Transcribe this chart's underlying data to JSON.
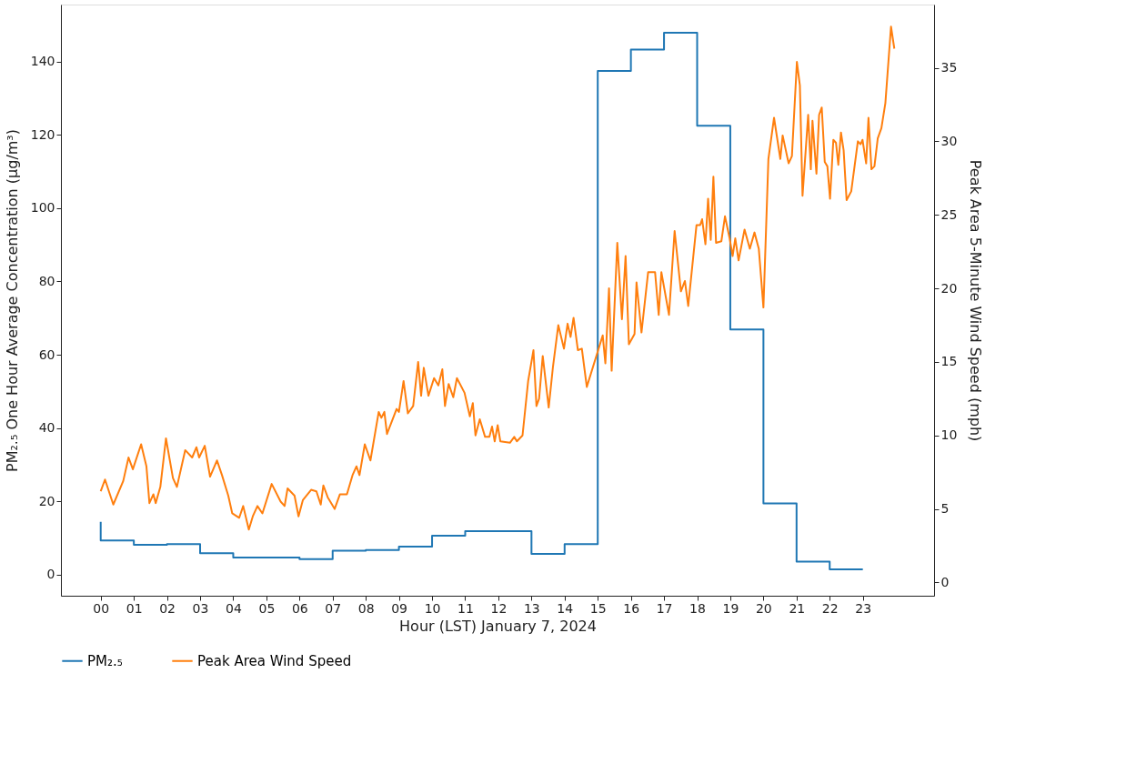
{
  "chart_data": {
    "type": "step",
    "xlabel": "Hour (LST) January 7, 2024",
    "ylabel": "PM₂.₅ One Hour Average Concentration (µg/m³)",
    "y2label": "Peak Area 5-Minute Wind Speed (mph)",
    "xlim": [
      -1.2,
      25.15
    ],
    "xticks": [
      {
        "value": 0,
        "label": "00"
      },
      {
        "value": 1,
        "label": "01"
      },
      {
        "value": 2,
        "label": "02"
      },
      {
        "value": 3,
        "label": "03"
      },
      {
        "value": 4,
        "label": "04"
      },
      {
        "value": 5,
        "label": "05"
      },
      {
        "value": 6,
        "label": "06"
      },
      {
        "value": 7,
        "label": "07"
      },
      {
        "value": 8,
        "label": "08"
      },
      {
        "value": 9,
        "label": "09"
      },
      10,
      11,
      12,
      13,
      14,
      15,
      16,
      17,
      18,
      19,
      20,
      21,
      22,
      23
    ],
    "ylim": [
      -5.8,
      155.6
    ],
    "yticks": [
      0,
      20,
      40,
      60,
      80,
      100,
      120,
      140
    ],
    "y2lim": [
      -0.9,
      39.3
    ],
    "y2ticks": [
      0,
      5,
      10,
      15,
      20,
      25,
      30,
      35
    ],
    "grid": false,
    "legend": "bottom",
    "series": [
      {
        "name": "PM₂.₅",
        "color": "#1f77b4",
        "x": [
          0,
          1,
          2,
          3,
          4,
          5,
          6,
          7,
          8,
          9,
          10,
          11,
          12,
          13,
          14,
          15,
          16,
          17,
          18,
          19,
          20,
          21,
          22,
          23
        ],
        "values": [
          14.4,
          9.3,
          8.1,
          8.3,
          5.8,
          4.6,
          4.6,
          4.2,
          6.5,
          6.7,
          7.6,
          10.6,
          11.8,
          11.8,
          5.6,
          8.3,
          137.5,
          143.3,
          147.9,
          122.5,
          66.9,
          19.4,
          3.5,
          1.4
        ]
      },
      {
        "name": "Peak Area Wind Speed",
        "type": "line",
        "axis": "y2",
        "color": "#ff7f0e",
        "x": [
          0.0,
          0.13,
          0.38,
          0.68,
          0.84,
          0.97,
          1.22,
          1.38,
          1.47,
          1.59,
          1.66,
          1.8,
          1.97,
          2.18,
          2.3,
          2.55,
          2.76,
          2.89,
          2.97,
          3.14,
          3.3,
          3.51,
          3.66,
          3.85,
          3.97,
          4.18,
          4.3,
          4.47,
          4.59,
          4.73,
          4.88,
          5.16,
          5.43,
          5.55,
          5.64,
          5.85,
          5.97,
          6.1,
          6.35,
          6.51,
          6.64,
          6.72,
          6.85,
          7.06,
          7.22,
          7.43,
          7.6,
          7.72,
          7.81,
          7.97,
          8.14,
          8.39,
          8.47,
          8.56,
          8.64,
          8.93,
          9.0,
          9.14,
          9.27,
          9.43,
          9.58,
          9.67,
          9.75,
          9.89,
          10.06,
          10.19,
          10.31,
          10.39,
          10.5,
          10.64,
          10.75,
          10.98,
          11.14,
          11.23,
          11.31,
          11.44,
          11.6,
          11.73,
          11.81,
          11.89,
          11.98,
          12.06,
          12.35,
          12.48,
          12.56,
          12.73,
          12.9,
          13.06,
          13.15,
          13.23,
          13.34,
          13.52,
          13.65,
          13.81,
          13.98,
          14.09,
          14.18,
          14.27,
          14.4,
          14.52,
          14.67,
          15.15,
          15.23,
          15.34,
          15.42,
          15.59,
          15.73,
          15.84,
          15.94,
          16.11,
          16.17,
          16.32,
          16.52,
          16.73,
          16.84,
          16.92,
          17.15,
          17.32,
          17.51,
          17.63,
          17.73,
          17.98,
          18.09,
          18.15,
          18.25,
          18.33,
          18.41,
          18.49,
          18.57,
          18.73,
          18.84,
          18.98,
          19.07,
          19.15,
          19.25,
          19.43,
          19.59,
          19.73,
          19.86,
          20.0,
          20.15,
          20.32,
          20.51,
          20.58,
          20.76,
          20.86,
          21.01,
          21.1,
          21.18,
          21.35,
          21.43,
          21.48,
          21.6,
          21.68,
          21.76,
          21.85,
          21.93,
          22.01,
          22.11,
          22.19,
          22.26,
          22.34,
          22.42,
          22.51,
          22.65,
          22.85,
          22.93,
          22.99,
          23.1,
          23.17,
          23.26,
          23.35,
          23.45,
          23.56,
          23.68,
          23.85,
          23.95
        ],
        "values": [
          6.2,
          7.0,
          5.3,
          6.9,
          8.5,
          7.7,
          9.4,
          7.9,
          5.4,
          6.0,
          5.4,
          6.5,
          9.8,
          7.1,
          6.5,
          9.0,
          8.5,
          9.2,
          8.5,
          9.3,
          7.2,
          8.3,
          7.3,
          5.9,
          4.7,
          4.4,
          5.2,
          3.6,
          4.5,
          5.2,
          4.7,
          6.7,
          5.5,
          5.2,
          6.4,
          5.9,
          4.5,
          5.6,
          6.3,
          6.2,
          5.3,
          6.6,
          5.8,
          5.0,
          6.0,
          6.0,
          7.3,
          7.9,
          7.3,
          9.4,
          8.3,
          11.6,
          11.2,
          11.6,
          10.1,
          11.8,
          11.6,
          13.7,
          11.5,
          12.0,
          15.0,
          12.7,
          14.6,
          12.7,
          13.9,
          13.4,
          14.5,
          12.0,
          13.5,
          12.6,
          13.9,
          12.9,
          11.3,
          12.2,
          10.0,
          11.1,
          9.9,
          9.9,
          10.6,
          9.6,
          10.7,
          9.6,
          9.5,
          9.9,
          9.6,
          10.0,
          13.7,
          15.8,
          12.0,
          12.5,
          15.4,
          11.9,
          14.7,
          17.5,
          15.9,
          17.6,
          16.7,
          18.0,
          15.8,
          15.9,
          13.3,
          16.8,
          14.9,
          20.0,
          14.4,
          23.1,
          17.9,
          22.2,
          16.2,
          16.9,
          20.4,
          17.0,
          21.1,
          21.1,
          18.2,
          21.1,
          18.2,
          23.9,
          19.8,
          20.5,
          18.8,
          24.3,
          24.3,
          24.7,
          23.0,
          26.1,
          23.3,
          27.6,
          23.1,
          23.2,
          24.9,
          23.4,
          22.2,
          23.4,
          21.9,
          24.0,
          22.7,
          23.8,
          22.7,
          18.7,
          28.8,
          31.6,
          28.8,
          30.4,
          28.5,
          29.0,
          35.4,
          33.8,
          26.3,
          31.8,
          28.1,
          31.4,
          27.8,
          31.8,
          32.3,
          28.6,
          28.3,
          26.1,
          30.1,
          29.9,
          28.4,
          30.6,
          29.4,
          26.0,
          26.6,
          30.0,
          29.8,
          30.1,
          28.5,
          31.6,
          28.1,
          28.3,
          30.2,
          30.9,
          32.6,
          37.8,
          36.3
        ]
      }
    ]
  }
}
